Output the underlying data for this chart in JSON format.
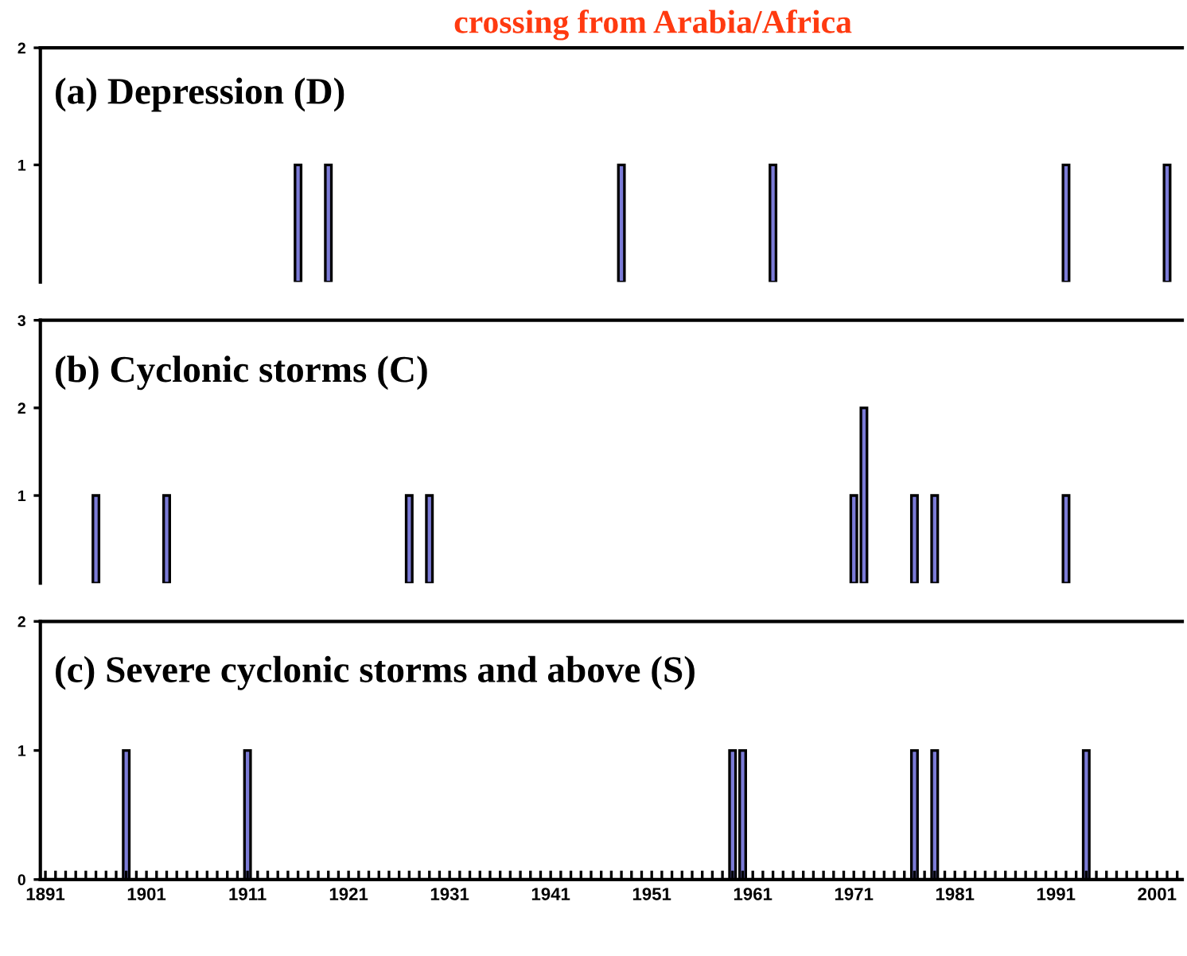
{
  "chart_data": [
    {
      "type": "bar",
      "title": "crossing from Arabia/Africa",
      "subtitle": "(a) Depression (D)",
      "x": [
        1916,
        1919,
        1948,
        1963,
        1992,
        2002
      ],
      "values": [
        1,
        1,
        1,
        1,
        1,
        1
      ],
      "color": "#7b7bd6",
      "xlim": [
        1890.5,
        2003.5
      ],
      "xticks": [
        1891,
        1901,
        1911,
        1921,
        1931,
        1941,
        1951,
        1961,
        1971,
        1981,
        1991,
        2001
      ],
      "ylim": [
        0,
        2
      ],
      "yticks": [
        1,
        2
      ],
      "tick_labels": "y",
      "grid": false,
      "legend": false
    },
    {
      "type": "bar",
      "subtitle": "(b) Cyclonic storms (C)",
      "x": [
        1896,
        1903,
        1927,
        1929,
        1971,
        1972,
        1977,
        1979,
        1992
      ],
      "values": [
        1,
        1,
        1,
        1,
        1,
        2,
        1,
        1,
        1
      ],
      "color": "#7b7bd6",
      "xlim": [
        1890.5,
        2003.5
      ],
      "xticks": [
        1891,
        1901,
        1911,
        1921,
        1931,
        1941,
        1951,
        1961,
        1971,
        1981,
        1991,
        2001
      ],
      "ylim": [
        0,
        3
      ],
      "yticks": [
        1,
        2,
        3
      ],
      "tick_labels": "y",
      "grid": false,
      "legend": false
    },
    {
      "type": "bar",
      "subtitle": "(c) Severe cyclonic storms and above (S)",
      "x": [
        1899,
        1911,
        1959,
        1960,
        1977,
        1979,
        1994
      ],
      "values": [
        1,
        1,
        1,
        1,
        1,
        1,
        1
      ],
      "color": "#7b7bd6",
      "xlim": [
        1890.5,
        2003.5
      ],
      "xticks": [
        1891,
        1901,
        1911,
        1921,
        1931,
        1941,
        1951,
        1961,
        1971,
        1981,
        1991,
        2001
      ],
      "ylim": [
        0,
        2
      ],
      "yticks": [
        0,
        1,
        2
      ],
      "grid": false,
      "legend": false
    }
  ]
}
